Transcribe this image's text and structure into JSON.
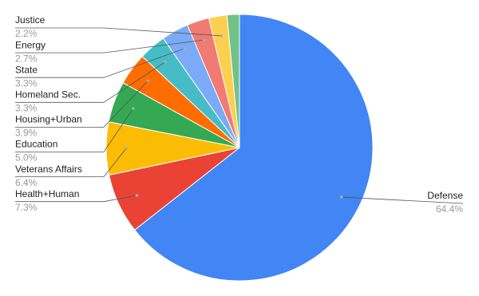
{
  "chart_data": {
    "type": "pie",
    "categories": [
      "Defense",
      "Health+Human",
      "Veterans Affairs",
      "Education",
      "Housing+Urban",
      "Homeland Sec.",
      "State",
      "Energy",
      "Justice",
      null
    ],
    "values": [
      64.4,
      7.3,
      6.4,
      5.0,
      3.9,
      3.3,
      3.3,
      2.7,
      2.2,
      1.5
    ],
    "value_labels": [
      "64.4%",
      "7.3%",
      "6.4%",
      "5.0%",
      "3.9%",
      "3.3%",
      "3.3%",
      "2.7%",
      "2.2%",
      null
    ],
    "colors": [
      "#4285f4",
      "#ea4335",
      "#fbbc04",
      "#34a853",
      "#ff6d01",
      "#46bdc6",
      "#7baaf7",
      "#f07b72",
      "#fcd04f",
      "#71c287"
    ]
  }
}
